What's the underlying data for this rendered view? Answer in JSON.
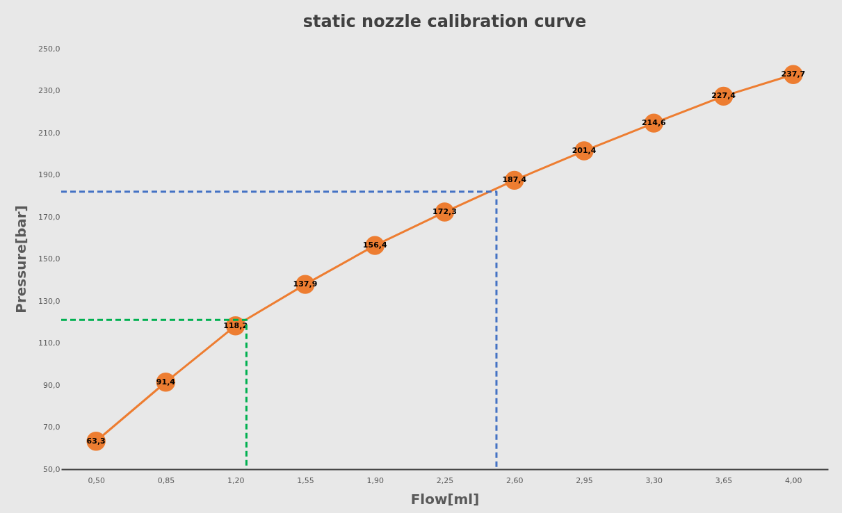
{
  "chart_data": {
    "type": "line",
    "title": "static nozzle calibration curve",
    "xlabel": "Flow[ml]",
    "ylabel": "Pressure[bar]",
    "x": [
      0.5,
      0.85,
      1.2,
      1.55,
      1.9,
      2.25,
      2.6,
      2.95,
      3.3,
      3.65,
      4
    ],
    "xlim": [
      0.325,
      4.175
    ],
    "xticks": [
      {
        "value": 0.5,
        "label": "0,50"
      },
      {
        "value": 0.85,
        "label": "0,85"
      },
      {
        "value": 1.2,
        "label": "1,20"
      },
      {
        "value": 1.55,
        "label": "1,55"
      },
      {
        "value": 1.9,
        "label": "1,90"
      },
      {
        "value": 2.25,
        "label": "2,25"
      },
      {
        "value": 2.6,
        "label": "2,60"
      },
      {
        "value": 2.95,
        "label": "2,95"
      },
      {
        "value": 3.3,
        "label": "3,30"
      },
      {
        "value": 3.65,
        "label": "3,65"
      },
      {
        "value": 4,
        "label": "4,00"
      }
    ],
    "ylim": [
      50,
      250
    ],
    "yticks": [
      {
        "value": 50,
        "label": "50,0"
      },
      {
        "value": 70,
        "label": "70,0"
      },
      {
        "value": 90,
        "label": "90,0"
      },
      {
        "value": 110,
        "label": "110,0"
      },
      {
        "value": 130,
        "label": "130,0"
      },
      {
        "value": 150,
        "label": "150,0"
      },
      {
        "value": 170,
        "label": "170,0"
      },
      {
        "value": 190,
        "label": "190,0"
      },
      {
        "value": 210,
        "label": "210,0"
      },
      {
        "value": 230,
        "label": "230,0"
      },
      {
        "value": 250,
        "label": "250,0"
      }
    ],
    "series": [
      {
        "color": "#ed7d31",
        "marker": "circle",
        "line_style": "solid",
        "values": [
          63.3,
          91.4,
          118.2,
          137.9,
          156.4,
          172.3,
          187.4,
          201.4,
          214.6,
          227.4,
          237.7
        ],
        "value_labels": [
          "63,3",
          "91,4",
          "118,2",
          "137,9",
          "156,4",
          "172,3",
          "187,4",
          "201,4",
          "214,6",
          "227,4",
          "237,7"
        ]
      },
      {
        "type": "line",
        "color": "#00b050",
        "marker": "none",
        "line_style": "dashed",
        "x": [
          0.325,
          1.255,
          1.255
        ],
        "values": [
          121,
          121,
          50
        ]
      },
      {
        "type": "line",
        "color": "#4472c4",
        "marker": "none",
        "line_style": "dashed",
        "x": [
          0.325,
          2.51,
          2.51
        ],
        "values": [
          182,
          182,
          50
        ]
      }
    ],
    "grid": false
  }
}
